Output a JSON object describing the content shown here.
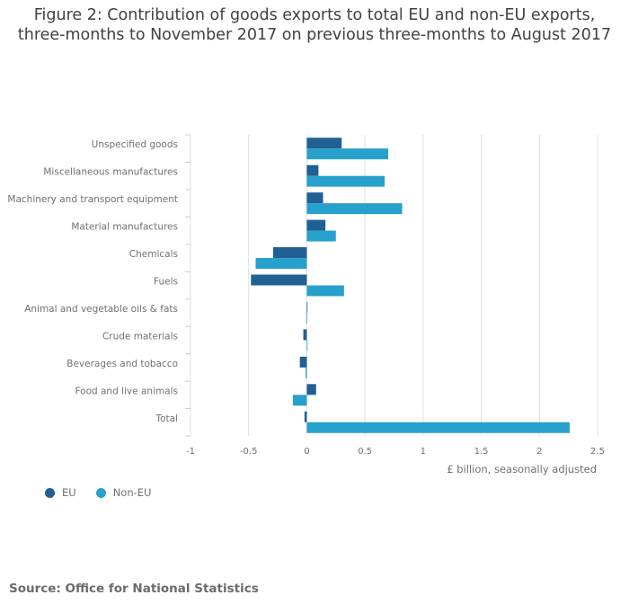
{
  "title": {
    "line1": "Figure 2: Contribution of goods exports to total EU and non-EU exports,",
    "line2": "three-months to November 2017 on previous three-months to August 2017"
  },
  "colors": {
    "eu": "#206095",
    "non_eu": "#27a0cc",
    "grid": "#e0e0e0",
    "text": "#707070"
  },
  "chart_data": {
    "type": "bar",
    "orientation": "horizontal",
    "categories": [
      "Unspecified goods",
      "Miscellaneous manufactures",
      "Machinery and transport equipment",
      "Material manufactures",
      "Chemicals",
      "Fuels",
      "Animal and vegetable oils & fats",
      "Crude materials",
      "Beverages and tobacco",
      "Food and live animals",
      "Total"
    ],
    "series": [
      {
        "name": "EU",
        "values": [
          0.3,
          0.1,
          0.14,
          0.16,
          -0.29,
          -0.48,
          0.0,
          -0.03,
          -0.06,
          0.08,
          -0.02
        ]
      },
      {
        "name": "Non-EU",
        "values": [
          0.7,
          0.67,
          0.82,
          0.25,
          -0.44,
          0.32,
          -0.005,
          0.005,
          -0.01,
          -0.12,
          2.26
        ]
      }
    ],
    "xticks": [
      "-1",
      "-0.5",
      "0",
      "0.5",
      "1",
      "1.5",
      "2",
      "2.5"
    ],
    "xlim": [
      -1,
      2.5
    ],
    "xlabel": "£ billion, seasonally adjusted",
    "grid": true,
    "legend_position": "bottom-left"
  },
  "legend": [
    {
      "label": "EU"
    },
    {
      "label": "Non-EU"
    }
  ],
  "source": "Source: Office for National Statistics"
}
